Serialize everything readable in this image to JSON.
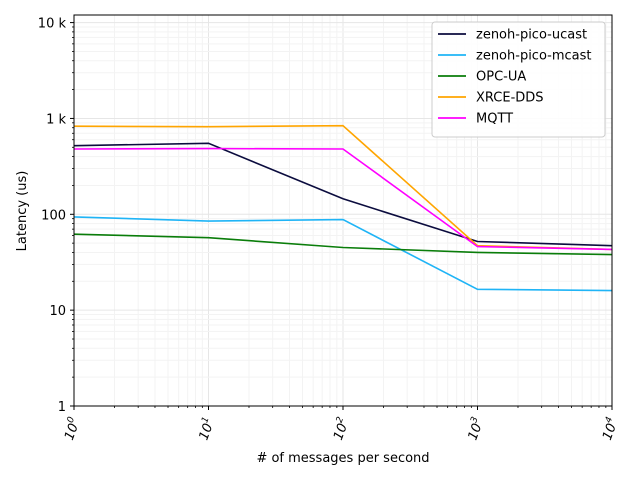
{
  "chart_data": {
    "type": "line",
    "title": "",
    "xlabel": "# of messages per second",
    "ylabel": "Latency (us)",
    "x_scale": "log",
    "y_scale": "log",
    "xlim": [
      1,
      10000
    ],
    "ylim": [
      1,
      12000
    ],
    "x": [
      1,
      10,
      100,
      1000,
      10000
    ],
    "x_tick_labels": [
      {
        "base": "10",
        "exp": "0"
      },
      {
        "base": "10",
        "exp": "1"
      },
      {
        "base": "10",
        "exp": "2"
      },
      {
        "base": "10",
        "exp": "3"
      },
      {
        "base": "10",
        "exp": "4"
      }
    ],
    "y_ticks": [
      1,
      10,
      100,
      1000,
      10000
    ],
    "y_tick_labels": [
      "1",
      "10",
      "100",
      "1 k",
      "10 k"
    ],
    "grid": true,
    "legend_position": "top-right",
    "series": [
      {
        "name": "zenoh-pico-ucast",
        "color": "#0b0c3e",
        "values": [
          520,
          550,
          145,
          52,
          47
        ]
      },
      {
        "name": "zenoh-pico-mcast",
        "color": "#1fb4f6",
        "values": [
          94,
          85,
          88,
          16.5,
          16
        ]
      },
      {
        "name": "OPC-UA",
        "color": "#0a7d0a",
        "values": [
          62,
          57,
          45,
          40,
          38
        ]
      },
      {
        "name": "XRCE-DDS",
        "color": "#ffa500",
        "values": [
          830,
          820,
          840,
          47,
          43
        ]
      },
      {
        "name": "MQTT",
        "color": "#ff00ff",
        "values": [
          480,
          485,
          480,
          46,
          43
        ]
      }
    ]
  }
}
